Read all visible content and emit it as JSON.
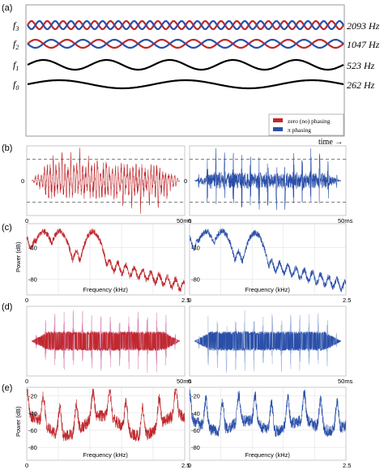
{
  "panel_labels": [
    "(a)",
    "(b)",
    "(c)",
    "(d)",
    "(e)"
  ],
  "colors": {
    "zero_phasing": "#c0282d",
    "pi_phasing": "#2a4fa8",
    "zero_light": "#d98ab4",
    "pi_light": "#9fb3dc",
    "black": "#000000"
  },
  "chart_data": [
    {
      "panel": "(a)",
      "type": "line",
      "rows": [
        {
          "label": "f3",
          "freq_label": "2093 Hz",
          "cycles": 20,
          "colors": [
            "zero_phasing",
            "pi_phasing"
          ]
        },
        {
          "label": "f2",
          "freq_label": "1047 Hz",
          "cycles": 10,
          "colors": [
            "zero_phasing",
            "pi_phasing"
          ]
        },
        {
          "label": "f1",
          "freq_label": "523 Hz",
          "cycles": 5,
          "colors": [
            "black"
          ]
        },
        {
          "label": "f0",
          "freq_label": "262 Hz",
          "cycles": 2.5,
          "colors": [
            "black"
          ]
        }
      ],
      "legend": {
        "placement": "bottom-right",
        "entries": [
          "zero (no) phasing",
          "π phasing"
        ]
      },
      "xlabel": "time →"
    },
    {
      "panel": "(b)",
      "type": "line",
      "xticks": [
        "0",
        "50ms"
      ],
      "yticks": [
        "0"
      ],
      "xlim": [
        0,
        50
      ],
      "series": [
        {
          "color": "zero_phasing",
          "pulses": 17,
          "amp": 0.7,
          "dashed_level": 0.34
        },
        {
          "color": "pi_phasing",
          "pulses": 17,
          "amp": 1.0,
          "dashed_level": 0.34
        }
      ]
    },
    {
      "panel": "(c)",
      "type": "line",
      "ylabel": "Power (dB)",
      "xlabel": "Frequency (kHz)",
      "xticks": [
        "0",
        "2.5"
      ],
      "yticks": [
        "-40",
        "-80"
      ],
      "xlim": [
        0,
        2.5
      ],
      "ylim": [
        -100,
        -10
      ],
      "series": [
        {
          "color": "zero_phasing",
          "peaks_khz": [
            0.262,
            0.523,
            1.047
          ],
          "peak_db": [
            -20,
            -20,
            -20
          ]
        },
        {
          "color": "pi_phasing",
          "peaks_khz": [
            0.262,
            0.523,
            1.047
          ],
          "peak_db": [
            -20,
            -20,
            -22
          ]
        }
      ]
    },
    {
      "panel": "(d)",
      "type": "line",
      "xticks": [
        "0",
        "50ms"
      ],
      "xlim": [
        0,
        50
      ],
      "series": [
        {
          "color": "zero_phasing",
          "light": "zero_light",
          "pulses": 16
        },
        {
          "color": "pi_phasing",
          "light": "pi_light",
          "pulses": 16
        }
      ]
    },
    {
      "panel": "(e)",
      "type": "line",
      "ylabel": "Power (dB)",
      "xlabel": "Frequency (kHz)",
      "xticks": [
        "0",
        "2.5"
      ],
      "yticks": [
        "-20",
        "-40",
        "-60",
        "-80"
      ],
      "xlim": [
        0,
        2.5
      ],
      "ylim": [
        -95,
        -10
      ],
      "series": [
        {
          "color": "zero_phasing"
        },
        {
          "color": "pi_phasing"
        }
      ]
    }
  ]
}
